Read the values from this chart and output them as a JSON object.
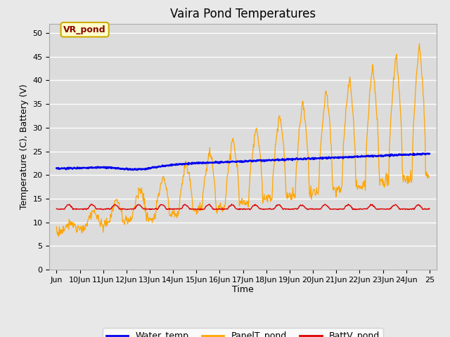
{
  "title": "Vaira Pond Temperatures",
  "xlabel": "Time",
  "ylabel": "Temperature (C), Battery (V)",
  "annotation": "VR_pond",
  "annotation_color": "#8B0000",
  "annotation_bg": "#FFFFCC",
  "annotation_border": "#CCAA00",
  "ylim": [
    0,
    52
  ],
  "yticks": [
    0,
    5,
    10,
    15,
    20,
    25,
    30,
    35,
    40,
    45,
    50
  ],
  "xtick_labels": [
    "Jun",
    "10Jun",
    "11Jun",
    "12Jun",
    "13Jun",
    "14Jun",
    "15Jun",
    "16Jun",
    "17Jun",
    "18Jun",
    "19Jun",
    "20Jun",
    "21Jun",
    "22Jun",
    "23Jun",
    "24Jun",
    "25"
  ],
  "water_color": "#0000EE",
  "panel_color": "#FFA500",
  "batt_color": "#DD0000",
  "legend_labels": [
    "Water_temp",
    "PanelT_pond",
    "BattV_pond"
  ],
  "plot_bg_color": "#DCDCDC",
  "fig_bg_color": "#E8E8E8",
  "grid_color": "#FFFFFF",
  "title_fontsize": 12,
  "tick_fontsize": 8,
  "label_fontsize": 9,
  "legend_fontsize": 9
}
